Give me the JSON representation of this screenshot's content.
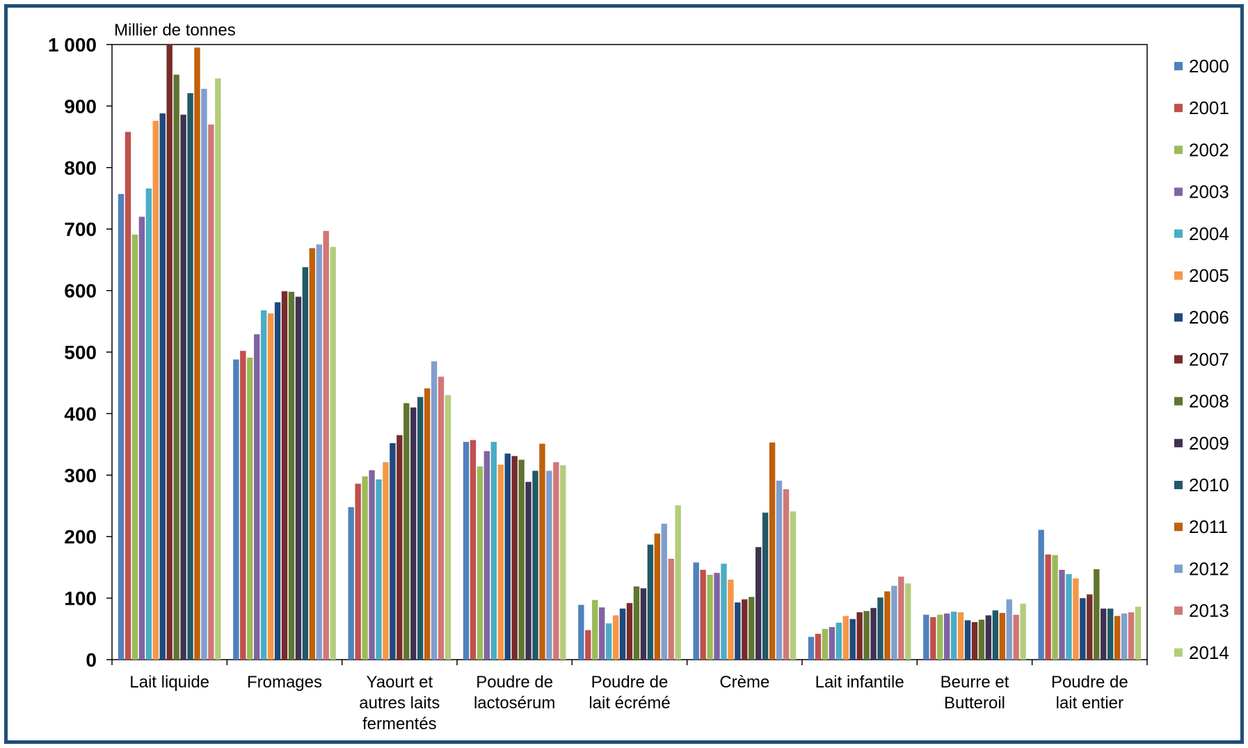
{
  "chart_data": {
    "type": "bar",
    "unit_label": "Millier de tonnes",
    "ylim": [
      0,
      1000
    ],
    "yticks": [
      0,
      100,
      200,
      300,
      400,
      500,
      600,
      700,
      800,
      900,
      1000
    ],
    "ytick_labels": [
      "0",
      "100",
      "200",
      "300",
      "400",
      "500",
      "600",
      "700",
      "800",
      "900",
      "1 000"
    ],
    "grid": false,
    "legend_position": "right",
    "categories": [
      [
        "Lait liquide"
      ],
      [
        "Fromages"
      ],
      [
        "Yaourt et",
        "autres laits",
        "fermentés"
      ],
      [
        "Poudre de",
        "lactosérum"
      ],
      [
        "Poudre de",
        "lait écrémé"
      ],
      [
        "Crème"
      ],
      [
        "Lait infantile"
      ],
      [
        "Beurre et",
        "Butteroil"
      ],
      [
        "Poudre de",
        "lait entier"
      ]
    ],
    "series": [
      {
        "name": "2000",
        "color": "#4f81bd",
        "values": [
          757,
          488,
          248,
          354,
          89,
          158,
          37,
          73,
          211
        ]
      },
      {
        "name": "2001",
        "color": "#c0504d",
        "values": [
          858,
          502,
          286,
          357,
          48,
          146,
          42,
          69,
          171
        ]
      },
      {
        "name": "2002",
        "color": "#9bbb59",
        "values": [
          691,
          491,
          298,
          314,
          97,
          138,
          50,
          73,
          170
        ]
      },
      {
        "name": "2003",
        "color": "#8064a2",
        "values": [
          720,
          529,
          308,
          339,
          85,
          141,
          53,
          75,
          146
        ]
      },
      {
        "name": "2004",
        "color": "#4bacc6",
        "values": [
          766,
          568,
          293,
          354,
          59,
          156,
          60,
          78,
          139
        ]
      },
      {
        "name": "2005",
        "color": "#f79646",
        "values": [
          876,
          563,
          321,
          317,
          72,
          130,
          71,
          77,
          132
        ]
      },
      {
        "name": "2006",
        "color": "#1f497d",
        "values": [
          888,
          581,
          352,
          335,
          83,
          93,
          66,
          64,
          100
        ]
      },
      {
        "name": "2007",
        "color": "#772c2a",
        "values": [
          1000,
          599,
          365,
          331,
          92,
          98,
          77,
          61,
          106
        ]
      },
      {
        "name": "2008",
        "color": "#5f7530",
        "values": [
          951,
          598,
          417,
          325,
          119,
          102,
          79,
          65,
          147
        ]
      },
      {
        "name": "2009",
        "color": "#403152",
        "values": [
          886,
          590,
          410,
          289,
          116,
          183,
          84,
          72,
          83
        ]
      },
      {
        "name": "2010",
        "color": "#215968",
        "values": [
          921,
          638,
          427,
          307,
          187,
          239,
          101,
          80,
          83
        ]
      },
      {
        "name": "2011",
        "color": "#c0600a",
        "values": [
          995,
          669,
          441,
          351,
          205,
          353,
          111,
          76,
          71
        ]
      },
      {
        "name": "2012",
        "color": "#7f9fcf",
        "values": [
          928,
          675,
          485,
          307,
          221,
          291,
          120,
          98,
          75
        ]
      },
      {
        "name": "2013",
        "color": "#d07876",
        "values": [
          870,
          697,
          460,
          321,
          164,
          277,
          135,
          73,
          77
        ]
      },
      {
        "name": "2014",
        "color": "#b3cd7d",
        "values": [
          945,
          671,
          430,
          316,
          251,
          241,
          124,
          91,
          86
        ]
      }
    ]
  }
}
